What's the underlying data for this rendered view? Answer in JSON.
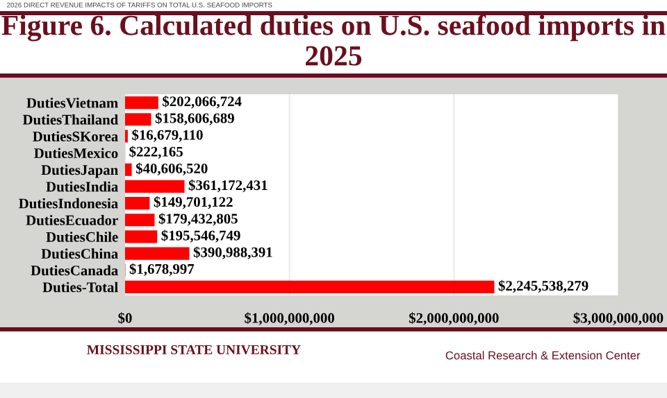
{
  "chart_data": {
    "type": "bar",
    "orientation": "horizontal",
    "title": "Figure 6. Calculated duties on U.S. seafood imports in 2025",
    "categories": [
      "DutiesVietnam",
      "DutiesThailand",
      "DutiesSKorea",
      "DutiesMexico",
      "DutiesJapan",
      "DutiesIndia",
      "DutiesIndonesia",
      "DutiesEcuador",
      "DutiesChile",
      "DutiesChina",
      "DutiesCanada",
      "Duties-Total"
    ],
    "values": [
      202066724,
      158606689,
      16679110,
      222165,
      40606520,
      361172431,
      149701122,
      179432805,
      195546749,
      390988391,
      1678997,
      2245538279
    ],
    "value_labels": [
      "$202,066,724",
      "$158,606,689",
      "$16,679,110",
      "$222,165",
      "$40,606,520",
      "$361,172,431",
      "$149,701,122",
      "$179,432,805",
      "$195,546,749",
      "$390,988,391",
      "$1,678,997",
      "$2,245,538,279"
    ],
    "color": "#ff0000",
    "xlim": [
      0,
      3000000000
    ],
    "xticks": [
      {
        "value": 0,
        "label": "$0"
      },
      {
        "value": 1000000000,
        "label": "$1,000,000,000"
      },
      {
        "value": 2000000000,
        "label": "$2,000,000,000"
      },
      {
        "value": 3000000000,
        "label": "$3,000,000,000"
      }
    ],
    "grid": "x",
    "legend": false,
    "annotations": [
      "2026 DIRECT REVENUE IMPACTS OF TARIFFS ON TOTAL U.S. SEAFOOD IMPORTS",
      "MISSISSIPPI STATE UNIVERSITY",
      "Coastal Research & Extension Center"
    ]
  }
}
